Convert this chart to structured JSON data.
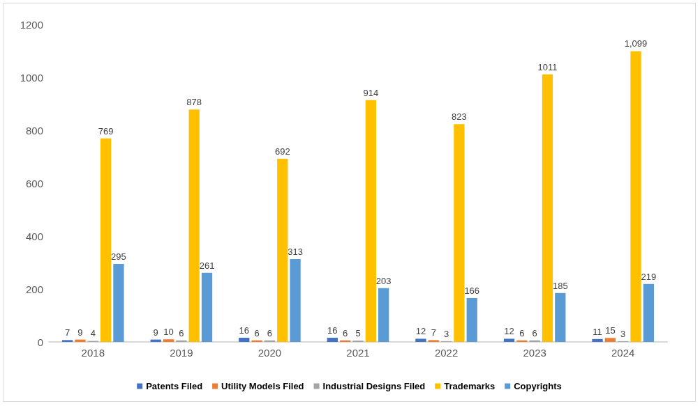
{
  "chart_data": {
    "type": "bar",
    "categories": [
      "2018",
      "2019",
      "2020",
      "2021",
      "2022",
      "2023",
      "2024"
    ],
    "series": [
      {
        "name": "Patents Filed",
        "color": "#4472c4",
        "values": [
          7,
          9,
          16,
          16,
          12,
          12,
          11
        ],
        "value_labels": [
          "7",
          "9",
          "16",
          "16",
          "12",
          "12",
          "11"
        ]
      },
      {
        "name": "Utility Models Filed",
        "color": "#ed7d31",
        "values": [
          9,
          10,
          6,
          6,
          7,
          6,
          15
        ],
        "value_labels": [
          "9",
          "10",
          "6",
          "6",
          "7",
          "6",
          "15"
        ]
      },
      {
        "name": "Industrial Designs Filed",
        "color": "#a5a5a5",
        "values": [
          4,
          6,
          6,
          5,
          3,
          6,
          3
        ],
        "value_labels": [
          "4",
          "6",
          "6",
          "5",
          "3",
          "6",
          "3"
        ]
      },
      {
        "name": "Trademarks",
        "color": "#ffc000",
        "values": [
          769,
          878,
          692,
          914,
          823,
          1011,
          1099
        ],
        "value_labels": [
          "769",
          "878",
          "692",
          "914",
          "823",
          "1011",
          "1,099"
        ]
      },
      {
        "name": "Copyrights",
        "color": "#5b9bd5",
        "values": [
          295,
          261,
          313,
          203,
          166,
          185,
          219
        ],
        "value_labels": [
          "295",
          "261",
          "313",
          "203",
          "166",
          "185",
          "219"
        ]
      }
    ],
    "ylim": [
      0,
      1200
    ],
    "yticks": [
      0,
      200,
      400,
      600,
      800,
      1000,
      1200
    ],
    "grid": false,
    "legend": "bottom"
  }
}
